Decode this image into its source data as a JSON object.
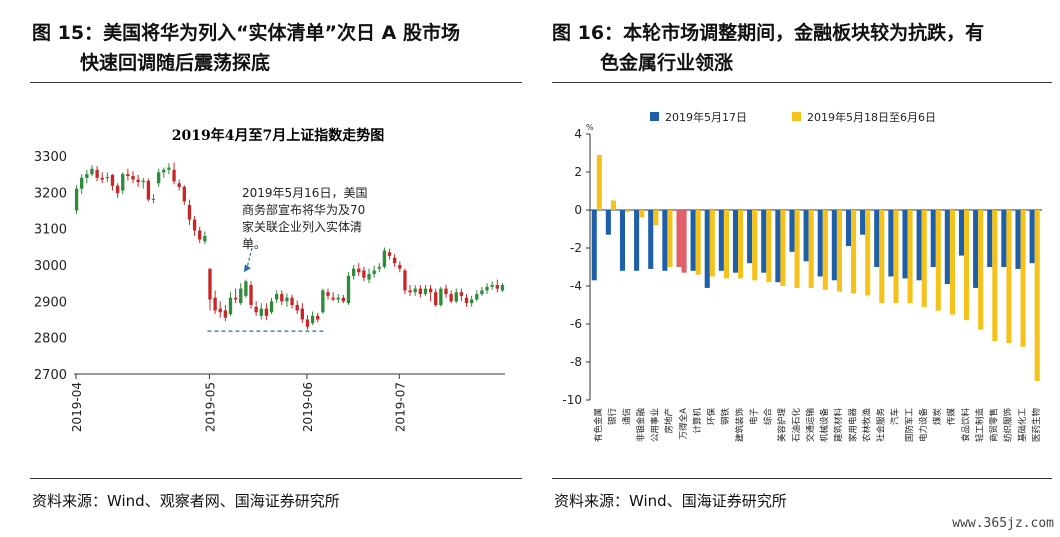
{
  "left_figure": {
    "label": "图 15：",
    "title_line1": "美国将华为列入“实体清单”次日 A 股市场",
    "title_line2": "快速回调随后震荡探底",
    "source": "资料来源：Wind、观察者网、国海证券研究所"
  },
  "right_figure": {
    "label": "图 16：",
    "title_line1": "本轮市场调整期间，金融板块较为抗跌，有",
    "title_line2": "色金属行业领涨",
    "source": "资料来源：Wind、国海证券研究所"
  },
  "watermark": "www.365jz.com",
  "chart_data": [
    {
      "type": "candlestick",
      "title": "2019年4月至7月上证指数走势图",
      "ylim": [
        2700,
        3300
      ],
      "yticks": [
        "3300",
        "3200",
        "3100",
        "3000",
        "2900",
        "2800",
        "2700"
      ],
      "xticks": [
        "2019-04",
        "2019-05",
        "2019-06",
        "2019-07"
      ],
      "annotation": {
        "text_lines": [
          "2019年5月16日，美国",
          "商务部宣布将华为及70",
          "家关联企业列入实体清",
          "单。"
        ]
      },
      "up_color": "#2e8b3a",
      "down_color": "#c62828",
      "candles": [
        {
          "o": 3150,
          "c": 3210,
          "h": 3220,
          "l": 3140
        },
        {
          "o": 3210,
          "c": 3240,
          "h": 3250,
          "l": 3195
        },
        {
          "o": 3240,
          "c": 3250,
          "h": 3262,
          "l": 3225
        },
        {
          "o": 3250,
          "c": 3265,
          "h": 3275,
          "l": 3245
        },
        {
          "o": 3262,
          "c": 3240,
          "h": 3272,
          "l": 3230
        },
        {
          "o": 3240,
          "c": 3235,
          "h": 3255,
          "l": 3225
        },
        {
          "o": 3240,
          "c": 3242,
          "h": 3255,
          "l": 3228
        },
        {
          "o": 3248,
          "c": 3218,
          "h": 3250,
          "l": 3205
        },
        {
          "o": 3218,
          "c": 3198,
          "h": 3225,
          "l": 3185
        },
        {
          "o": 3205,
          "c": 3250,
          "h": 3255,
          "l": 3195
        },
        {
          "o": 3250,
          "c": 3245,
          "h": 3265,
          "l": 3232
        },
        {
          "o": 3245,
          "c": 3235,
          "h": 3258,
          "l": 3225
        },
        {
          "o": 3235,
          "c": 3228,
          "h": 3248,
          "l": 3215
        },
        {
          "o": 3228,
          "c": 3232,
          "h": 3240,
          "l": 3210
        },
        {
          "o": 3232,
          "c": 3180,
          "h": 3238,
          "l": 3175
        },
        {
          "o": 3180,
          "c": 3182,
          "h": 3195,
          "l": 3170
        },
        {
          "o": 3225,
          "c": 3255,
          "h": 3265,
          "l": 3215
        },
        {
          "o": 3255,
          "c": 3262,
          "h": 3268,
          "l": 3240
        },
        {
          "o": 3262,
          "c": 3268,
          "h": 3280,
          "l": 3250
        },
        {
          "o": 3262,
          "c": 3230,
          "h": 3282,
          "l": 3222
        },
        {
          "o": 3225,
          "c": 3215,
          "h": 3235,
          "l": 3205
        },
        {
          "o": 3215,
          "c": 3175,
          "h": 3220,
          "l": 3165
        },
        {
          "o": 3165,
          "c": 3125,
          "h": 3180,
          "l": 3110
        },
        {
          "o": 3125,
          "c": 3095,
          "h": 3135,
          "l": 3080
        },
        {
          "o": 3095,
          "c": 3070,
          "h": 3105,
          "l": 3060
        },
        {
          "o": 3065,
          "c": 3080,
          "h": 3092,
          "l": 3058
        },
        {
          "o": 2990,
          "c": 2905,
          "h": 2990,
          "l": 2875
        },
        {
          "o": 2910,
          "c": 2875,
          "h": 2930,
          "l": 2865
        },
        {
          "o": 2880,
          "c": 2870,
          "h": 2900,
          "l": 2855
        },
        {
          "o": 2875,
          "c": 2855,
          "h": 2890,
          "l": 2845
        },
        {
          "o": 2865,
          "c": 2910,
          "h": 2925,
          "l": 2860
        },
        {
          "o": 2910,
          "c": 2905,
          "h": 2935,
          "l": 2895
        },
        {
          "o": 2895,
          "c": 2935,
          "h": 2950,
          "l": 2890
        },
        {
          "o": 2915,
          "c": 2955,
          "h": 2960,
          "l": 2910
        },
        {
          "o": 2945,
          "c": 2890,
          "h": 2955,
          "l": 2880
        },
        {
          "o": 2885,
          "c": 2870,
          "h": 2900,
          "l": 2860
        },
        {
          "o": 2860,
          "c": 2880,
          "h": 2895,
          "l": 2850
        },
        {
          "o": 2880,
          "c": 2860,
          "h": 2895,
          "l": 2848
        },
        {
          "o": 2870,
          "c": 2900,
          "h": 2910,
          "l": 2865
        },
        {
          "o": 2905,
          "c": 2920,
          "h": 2930,
          "l": 2895
        },
        {
          "o": 2920,
          "c": 2900,
          "h": 2930,
          "l": 2890
        },
        {
          "o": 2900,
          "c": 2910,
          "h": 2922,
          "l": 2885
        },
        {
          "o": 2910,
          "c": 2890,
          "h": 2918,
          "l": 2880
        },
        {
          "o": 2890,
          "c": 2875,
          "h": 2902,
          "l": 2865
        },
        {
          "o": 2880,
          "c": 2850,
          "h": 2895,
          "l": 2840
        },
        {
          "o": 2850,
          "c": 2830,
          "h": 2862,
          "l": 2822
        },
        {
          "o": 2840,
          "c": 2860,
          "h": 2872,
          "l": 2835
        },
        {
          "o": 2860,
          "c": 2850,
          "h": 2868,
          "l": 2842
        },
        {
          "o": 2870,
          "c": 2930,
          "h": 2935,
          "l": 2865
        },
        {
          "o": 2925,
          "c": 2915,
          "h": 2935,
          "l": 2905
        },
        {
          "o": 2910,
          "c": 2905,
          "h": 2925,
          "l": 2900
        },
        {
          "o": 2905,
          "c": 2910,
          "h": 2920,
          "l": 2895
        },
        {
          "o": 2910,
          "c": 2900,
          "h": 2918,
          "l": 2895
        },
        {
          "o": 2895,
          "c": 2970,
          "h": 2980,
          "l": 2890
        },
        {
          "o": 2970,
          "c": 2990,
          "h": 3000,
          "l": 2960
        },
        {
          "o": 2990,
          "c": 2980,
          "h": 3005,
          "l": 2970
        },
        {
          "o": 2985,
          "c": 2965,
          "h": 2995,
          "l": 2955
        },
        {
          "o": 2960,
          "c": 2975,
          "h": 2990,
          "l": 2950
        },
        {
          "o": 2975,
          "c": 2985,
          "h": 2998,
          "l": 2965
        },
        {
          "o": 2990,
          "c": 2995,
          "h": 3005,
          "l": 2980
        },
        {
          "o": 2995,
          "c": 3040,
          "h": 3048,
          "l": 2990
        },
        {
          "o": 3035,
          "c": 3025,
          "h": 3045,
          "l": 3015
        },
        {
          "o": 3020,
          "c": 3005,
          "h": 3030,
          "l": 2995
        },
        {
          "o": 3000,
          "c": 2990,
          "h": 3010,
          "l": 2980
        },
        {
          "o": 2985,
          "c": 2930,
          "h": 2990,
          "l": 2920
        },
        {
          "o": 2930,
          "c": 2925,
          "h": 2945,
          "l": 2915
        },
        {
          "o": 2925,
          "c": 2935,
          "h": 2945,
          "l": 2915
        },
        {
          "o": 2935,
          "c": 2920,
          "h": 2945,
          "l": 2910
        },
        {
          "o": 2920,
          "c": 2935,
          "h": 2945,
          "l": 2915
        },
        {
          "o": 2935,
          "c": 2925,
          "h": 2945,
          "l": 2900
        },
        {
          "o": 2925,
          "c": 2890,
          "h": 2935,
          "l": 2885
        },
        {
          "o": 2890,
          "c": 2935,
          "h": 2940,
          "l": 2885
        },
        {
          "o": 2935,
          "c": 2920,
          "h": 2945,
          "l": 2910
        },
        {
          "o": 2920,
          "c": 2900,
          "h": 2930,
          "l": 2895
        },
        {
          "o": 2900,
          "c": 2925,
          "h": 2935,
          "l": 2895
        },
        {
          "o": 2925,
          "c": 2915,
          "h": 2935,
          "l": 2900
        },
        {
          "o": 2910,
          "c": 2895,
          "h": 2920,
          "l": 2885
        },
        {
          "o": 2895,
          "c": 2905,
          "h": 2915,
          "l": 2885
        },
        {
          "o": 2905,
          "c": 2920,
          "h": 2930,
          "l": 2900
        },
        {
          "o": 2920,
          "c": 2930,
          "h": 2940,
          "l": 2915
        },
        {
          "o": 2930,
          "c": 2940,
          "h": 2950,
          "l": 2920
        },
        {
          "o": 2940,
          "c": 2945,
          "h": 2955,
          "l": 2932
        },
        {
          "o": 2945,
          "c": 2935,
          "h": 2960,
          "l": 2925
        },
        {
          "o": 2930,
          "c": 2945,
          "h": 2950,
          "l": 2925
        }
      ]
    },
    {
      "type": "bar",
      "unit_label": "%",
      "ylim": [
        -10,
        4
      ],
      "yticks": [
        4,
        2,
        0,
        -2,
        -4,
        -6,
        -8,
        -10
      ],
      "grid": false,
      "legend_position": "top",
      "categories": [
        "有色金属",
        "银行",
        "通信",
        "非银金融",
        "公用事业",
        "房地产",
        "万得全A",
        "计算机",
        "环保",
        "钢铁",
        "建筑装饰",
        "电子",
        "综合",
        "美容护理",
        "石油石化",
        "交通运输",
        "机械设备",
        "建筑材料",
        "家用电器",
        "农林牧渔",
        "社会服务",
        "汽车",
        "国防军工",
        "电力设备",
        "煤炭",
        "传媒",
        "食品饮料",
        "轻工制造",
        "商贸零售",
        "纺织服饰",
        "基础化工",
        "医药生物"
      ],
      "series": [
        {
          "name": "2019年5月17日",
          "color": "#1f5fa8",
          "values": [
            -3.7,
            -1.3,
            -3.2,
            -3.2,
            -3.1,
            -3.2,
            -3.0,
            -3.2,
            -4.1,
            -3.2,
            -3.3,
            -2.8,
            -3.3,
            -3.8,
            -2.2,
            -2.7,
            -3.5,
            -3.7,
            -1.9,
            -1.3,
            -3.0,
            -3.5,
            -3.6,
            -3.7,
            -3.0,
            -3.9,
            -2.4,
            -4.1,
            -3.0,
            -3.0,
            -3.1,
            -2.8
          ]
        },
        {
          "name": "2019年5月18日至6月6日",
          "color": "#f5c21b",
          "values": [
            2.9,
            0.5,
            -0.1,
            -0.4,
            -0.8,
            -3.0,
            -3.3,
            -3.4,
            -3.5,
            -3.6,
            -3.6,
            -3.7,
            -3.8,
            -4.0,
            -4.1,
            -4.1,
            -4.2,
            -4.3,
            -4.4,
            -4.5,
            -4.9,
            -4.9,
            -4.9,
            -5.1,
            -5.3,
            -5.5,
            -5.8,
            -6.3,
            -6.9,
            -7.0,
            -7.2,
            -9.0
          ]
        }
      ],
      "highlight": {
        "category": "万得全A",
        "color": "#e0606a"
      }
    }
  ]
}
